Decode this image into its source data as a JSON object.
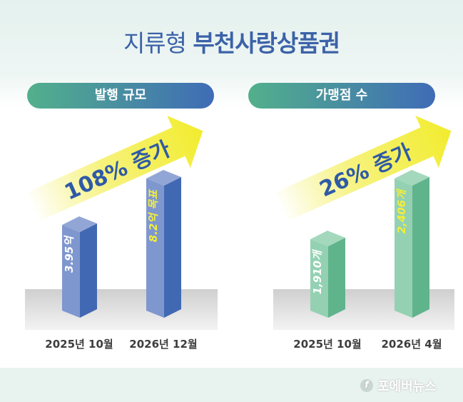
{
  "header": {
    "title_light": "지류형",
    "title_bold": "부천사랑상품권"
  },
  "chart_data": [
    {
      "type": "bar",
      "title": "발행 규모",
      "categories": [
        "2025년 10월",
        "2026년 12월"
      ],
      "values": [
        3.95,
        8.2
      ],
      "unit": "억",
      "data_labels": [
        "3.95억",
        "8.2억 목표"
      ],
      "annotation": "108% 증가",
      "colors": {
        "front": "#7f97cf",
        "side": "#4169b3",
        "label_first": "#ffffff",
        "label_second": "#f2ee3c"
      }
    },
    {
      "type": "bar",
      "title": "가맹점 수",
      "categories": [
        "2025년 10월",
        "2026년 4월"
      ],
      "values": [
        1910,
        2406
      ],
      "unit": "개",
      "data_labels": [
        "1,910개",
        "2,406개"
      ],
      "annotation": "26% 증가",
      "colors": {
        "front": "#93d1b2",
        "side": "#5fb48c",
        "label_first": "#ffffff",
        "label_second": "#f2ee3c"
      }
    }
  ],
  "footer": {
    "logo_text": "포에버뉴스"
  }
}
